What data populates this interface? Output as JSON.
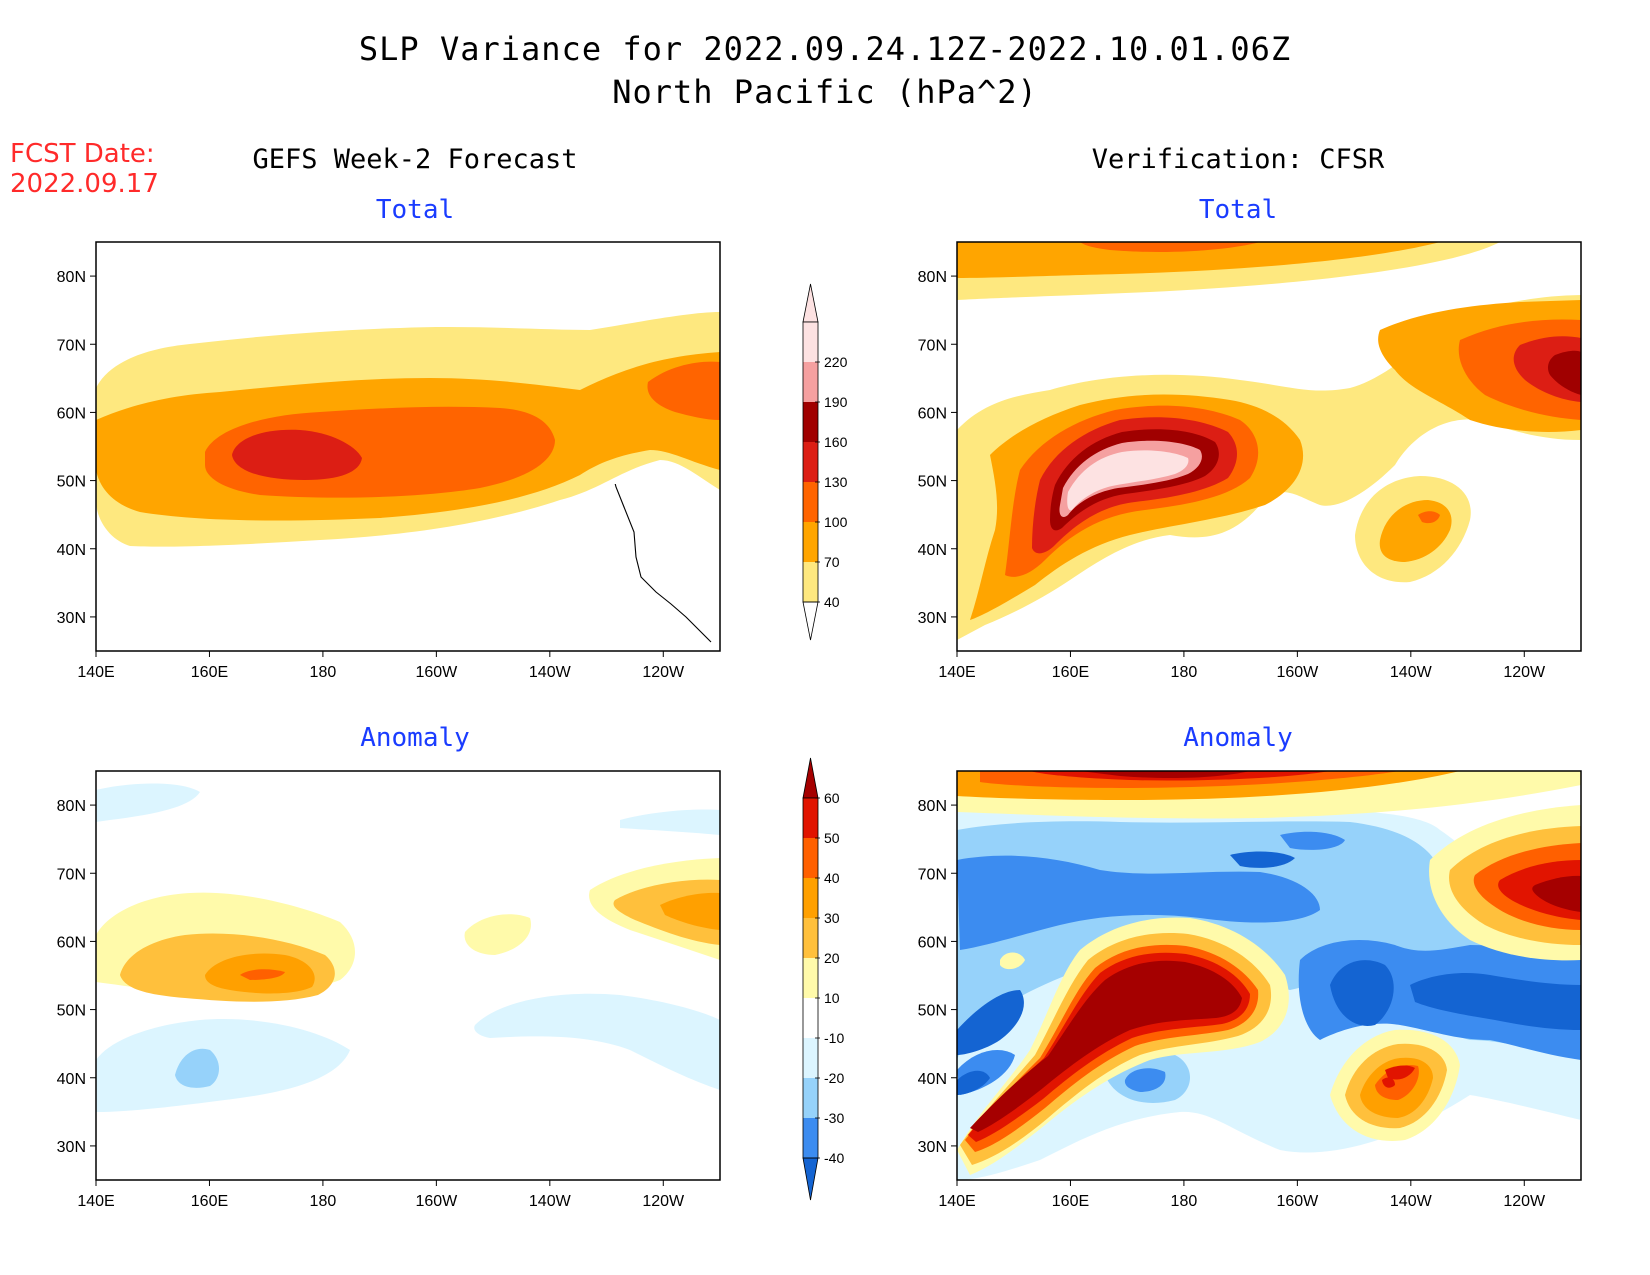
{
  "title_line1": "SLP Variance for 2022.09.24.12Z-2022.10.01.06Z",
  "title_line2": "North Pacific (hPa^2)",
  "fcst_label": "FCST Date:",
  "fcst_date": "2022.09.17",
  "left_column_header": "GEFS Week-2 Forecast",
  "right_column_header": "Verification: CFSR",
  "panel_titles": {
    "total": "Total",
    "anomaly": "Anomaly"
  },
  "colors": {
    "total_levels": [
      "#fee87f",
      "#ffa500",
      "#ff6400",
      "#dc1e14",
      "#a00000",
      "#f5a0a0",
      "#fde2e2"
    ],
    "anomaly_levels": [
      "#1464d2",
      "#3c8cf0",
      "#96d2fa",
      "#dcf5ff",
      "#ffffff",
      "#fffaaa",
      "#ffc03c",
      "#ffa000",
      "#ff6000",
      "#e11400",
      "#a50000"
    ]
  },
  "chart_data": [
    {
      "type": "heatmap",
      "panel": "GEFS Week-2 Forecast Total",
      "xlabel": "",
      "ylabel": "",
      "x_ticks": [
        "140E",
        "160E",
        "180",
        "160W",
        "140W",
        "120W"
      ],
      "y_ticks": [
        "30N",
        "40N",
        "50N",
        "60N",
        "70N",
        "80N"
      ],
      "lon_range": [
        140,
        250
      ],
      "lat_range": [
        25,
        85
      ],
      "colorbar_levels": [
        40,
        70,
        100,
        130,
        160,
        190,
        220
      ],
      "features": [
        {
          "value_min": 40,
          "center": [
            195,
            55
          ],
          "desc": "band"
        },
        {
          "value_min": 100,
          "center": [
            180,
            54
          ]
        },
        {
          "value_min": 130,
          "center": [
            175,
            54
          ]
        }
      ]
    },
    {
      "type": "heatmap",
      "panel": "Verification CFSR Total",
      "xlabel": "",
      "ylabel": "",
      "x_ticks": [
        "140E",
        "160E",
        "180",
        "160W",
        "140W",
        "120W"
      ],
      "y_ticks": [
        "30N",
        "40N",
        "50N",
        "60N",
        "70N",
        "80N"
      ],
      "lon_range": [
        140,
        250
      ],
      "lat_range": [
        25,
        85
      ],
      "colorbar_levels": [
        40,
        70,
        100,
        130,
        160,
        190,
        220
      ],
      "features": [
        {
          "value_min": 220,
          "center": [
            180,
            54
          ]
        },
        {
          "value_min": 70,
          "center": [
            221,
            44
          ]
        },
        {
          "value_min": 160,
          "center": [
            248,
            62
          ]
        }
      ]
    },
    {
      "type": "heatmap",
      "panel": "GEFS Week-2 Forecast Anomaly",
      "xlabel": "",
      "ylabel": "",
      "x_ticks": [
        "140E",
        "160E",
        "180",
        "160W",
        "140W",
        "120W"
      ],
      "y_ticks": [
        "30N",
        "40N",
        "50N",
        "60N",
        "70N",
        "80N"
      ],
      "lon_range": [
        140,
        250
      ],
      "lat_range": [
        25,
        85
      ],
      "colorbar_levels": [
        -40,
        -30,
        -20,
        -10,
        10,
        20,
        30,
        40,
        50,
        60
      ],
      "features": [
        {
          "value_min": 30,
          "center": [
            168,
            55
          ]
        },
        {
          "value_min": 20,
          "center": [
            245,
            62
          ]
        },
        {
          "value_max": -20,
          "center": [
            158,
            41
          ]
        }
      ]
    },
    {
      "type": "heatmap",
      "panel": "Verification CFSR Anomaly",
      "xlabel": "",
      "ylabel": "",
      "x_ticks": [
        "140E",
        "160E",
        "180",
        "160W",
        "140W",
        "120W"
      ],
      "y_ticks": [
        "30N",
        "40N",
        "50N",
        "60N",
        "70N",
        "80N"
      ],
      "lon_range": [
        140,
        250
      ],
      "lat_range": [
        25,
        85
      ],
      "colorbar_levels": [
        -40,
        -30,
        -20,
        -10,
        10,
        20,
        30,
        40,
        50,
        60
      ],
      "features": [
        {
          "value_min": 60,
          "center": [
            180,
            55
          ]
        },
        {
          "value_min": 50,
          "center": [
            248,
            65
          ]
        },
        {
          "value_max": -40,
          "center": [
            215,
            52
          ]
        }
      ]
    }
  ]
}
